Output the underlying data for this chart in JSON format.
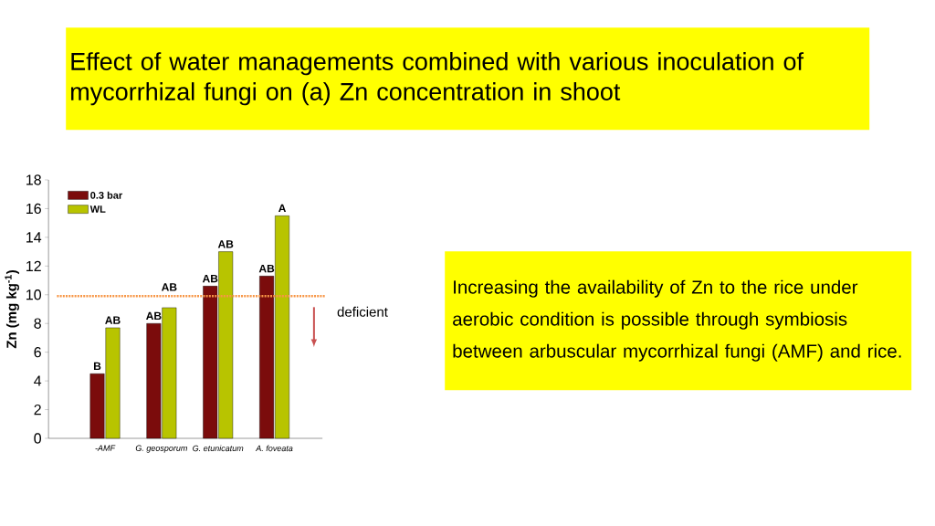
{
  "chart_data": {
    "type": "bar",
    "title": "Effect of water managements combined with various inoculation of mycorrhizal fungi on (a) Zn concentration in shoot",
    "ylabel": "Zn (mg kg$^{-1}$)",
    "categories": [
      "-AMF",
      "G. geosporum",
      "G. etunicatum",
      "A. foveata"
    ],
    "series": [
      {
        "name": "0.3 bar",
        "color": "#7b0c0c",
        "values": [
          4.5,
          8.0,
          10.6,
          11.3
        ]
      },
      {
        "name": "WL",
        "color": "#b8c400",
        "values": [
          7.7,
          9.1,
          13.0,
          15.5
        ]
      }
    ],
    "ylim": [
      0,
      18
    ],
    "yticks": [
      0,
      2,
      4,
      6,
      8,
      10,
      12,
      14,
      16,
      18
    ],
    "legend": "top left",
    "grid": false,
    "ref_lines": [
      {
        "axis": "y",
        "value": 9.9,
        "label": "deficient",
        "color": "#f79646",
        "line_style": "dotted"
      }
    ],
    "annotations": [
      {
        "text": "B",
        "x": "-AMF",
        "y": 4.5
      },
      {
        "text": "AB",
        "x": "-AMF",
        "y": 7.7
      },
      {
        "text": "AB",
        "x": "G. geosporum",
        "y": 8.0
      },
      {
        "text": "AB",
        "x": "G. geosporum",
        "y": 9.1
      },
      {
        "text": "AB",
        "x": "G. etunicatum",
        "y": 10.6
      },
      {
        "text": "AB",
        "x": "G. etunicatum",
        "y": 13.0
      },
      {
        "text": "AB",
        "x": "A. foveata",
        "y": 11.3
      },
      {
        "text": "A",
        "x": "A. foveata",
        "y": 15.5
      },
      "Increasing the availability of Zn to the rice under aerobic condition is possible through symbiosis between arbuscular mycorrhizal fungi  (AMF) and rice."
    ]
  }
}
